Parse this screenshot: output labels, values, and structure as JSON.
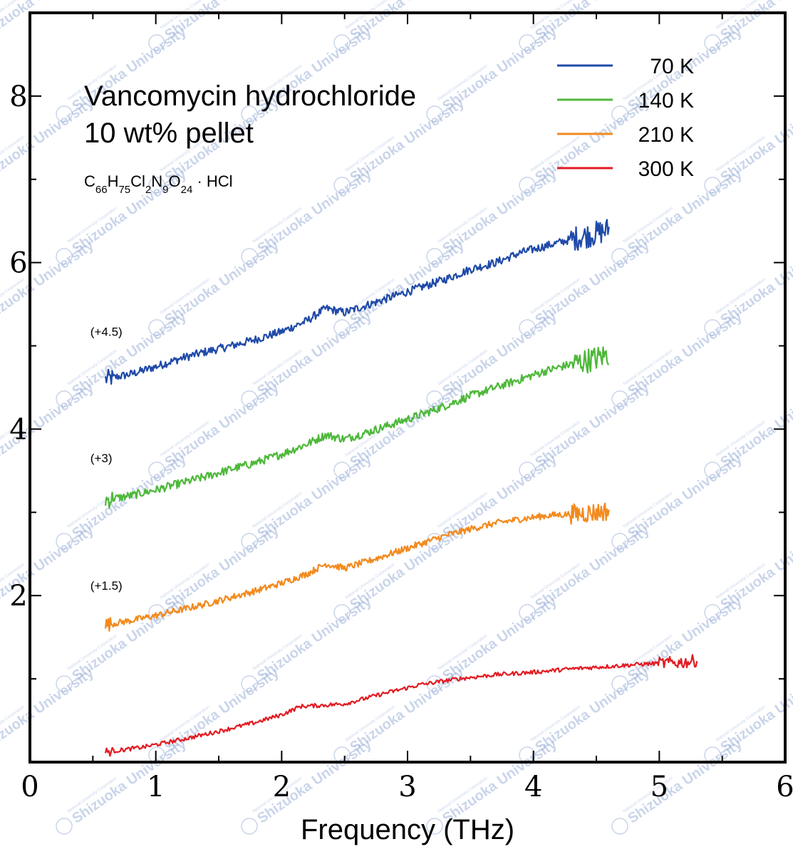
{
  "chart_data": {
    "type": "line",
    "title": "Vancomycin hydrochloride",
    "subtitle": "10 wt% pellet",
    "formula": {
      "parts": [
        {
          "t": "C",
          "s": false
        },
        {
          "t": "66",
          "s": true
        },
        {
          "t": "H",
          "s": false
        },
        {
          "t": "75",
          "s": true
        },
        {
          "t": "Cl",
          "s": false
        },
        {
          "t": "2",
          "s": true
        },
        {
          "t": "N",
          "s": false
        },
        {
          "t": "9",
          "s": true
        },
        {
          "t": "O",
          "s": false
        },
        {
          "t": "24",
          "s": true
        },
        {
          "t": " · HCl",
          "s": false
        }
      ]
    },
    "xlabel": "Frequency (THz)",
    "ylabel": "",
    "xlim": [
      0,
      6
    ],
    "ylim": [
      0,
      9
    ],
    "x_ticks": [
      "0",
      "1",
      "2",
      "3",
      "4",
      "5",
      "6"
    ],
    "y_ticks": [
      "2",
      "4",
      "6",
      "8"
    ],
    "legend_position": "top-right",
    "offset_labels": [
      {
        "text": "(+4.5)",
        "x": 0.48,
        "y": 5.12
      },
      {
        "text": "(+3)",
        "x": 0.48,
        "y": 3.6
      },
      {
        "text": "(+1.5)",
        "x": 0.48,
        "y": 2.07
      }
    ],
    "series": [
      {
        "name": "70 K",
        "color": "#1f4aa8",
        "noise": 0.05,
        "x": [
          0.6,
          0.8,
          1.0,
          1.2,
          1.4,
          1.6,
          1.8,
          2.0,
          2.2,
          2.35,
          2.5,
          2.7,
          2.9,
          3.1,
          3.3,
          3.5,
          3.7,
          3.9,
          4.1,
          4.3,
          4.5,
          4.6
        ],
        "y": [
          4.6,
          4.66,
          4.75,
          4.85,
          4.93,
          5.0,
          5.08,
          5.17,
          5.3,
          5.45,
          5.4,
          5.5,
          5.6,
          5.7,
          5.8,
          5.92,
          6.0,
          6.12,
          6.2,
          6.28,
          6.35,
          6.4
        ]
      },
      {
        "name": "140 K",
        "color": "#4eb83a",
        "noise": 0.05,
        "x": [
          0.6,
          0.8,
          1.0,
          1.2,
          1.4,
          1.6,
          1.8,
          2.0,
          2.2,
          2.35,
          2.5,
          2.7,
          2.9,
          3.1,
          3.3,
          3.5,
          3.7,
          3.9,
          4.1,
          4.3,
          4.5,
          4.6
        ],
        "y": [
          3.15,
          3.2,
          3.27,
          3.35,
          3.43,
          3.52,
          3.6,
          3.7,
          3.82,
          3.93,
          3.88,
          3.97,
          4.07,
          4.17,
          4.28,
          4.4,
          4.5,
          4.6,
          4.7,
          4.78,
          4.85,
          4.9
        ]
      },
      {
        "name": "210 K",
        "color": "#f28a1e",
        "noise": 0.04,
        "x": [
          0.6,
          0.8,
          1.0,
          1.2,
          1.4,
          1.6,
          1.8,
          2.0,
          2.2,
          2.35,
          2.5,
          2.7,
          2.9,
          3.1,
          3.3,
          3.5,
          3.7,
          3.9,
          4.1,
          4.3,
          4.5,
          4.6
        ],
        "y": [
          1.65,
          1.7,
          1.76,
          1.83,
          1.9,
          1.98,
          2.06,
          2.15,
          2.26,
          2.38,
          2.33,
          2.42,
          2.52,
          2.62,
          2.72,
          2.8,
          2.87,
          2.92,
          2.96,
          2.98,
          3.0,
          3.02
        ]
      },
      {
        "name": "300 K",
        "color": "#e21b22",
        "noise": 0.025,
        "x": [
          0.6,
          0.9,
          1.2,
          1.5,
          1.8,
          2.0,
          2.15,
          2.3,
          2.5,
          2.8,
          3.1,
          3.4,
          3.7,
          4.0,
          4.3,
          4.6,
          4.9,
          5.2,
          5.3
        ],
        "y": [
          0.12,
          0.18,
          0.27,
          0.37,
          0.48,
          0.57,
          0.67,
          0.68,
          0.7,
          0.82,
          0.93,
          1.0,
          1.05,
          1.08,
          1.12,
          1.15,
          1.18,
          1.2,
          1.22
        ]
      }
    ]
  },
  "watermark": {
    "text": "Shizuoka University",
    "subtext": "National University Corporation"
  }
}
